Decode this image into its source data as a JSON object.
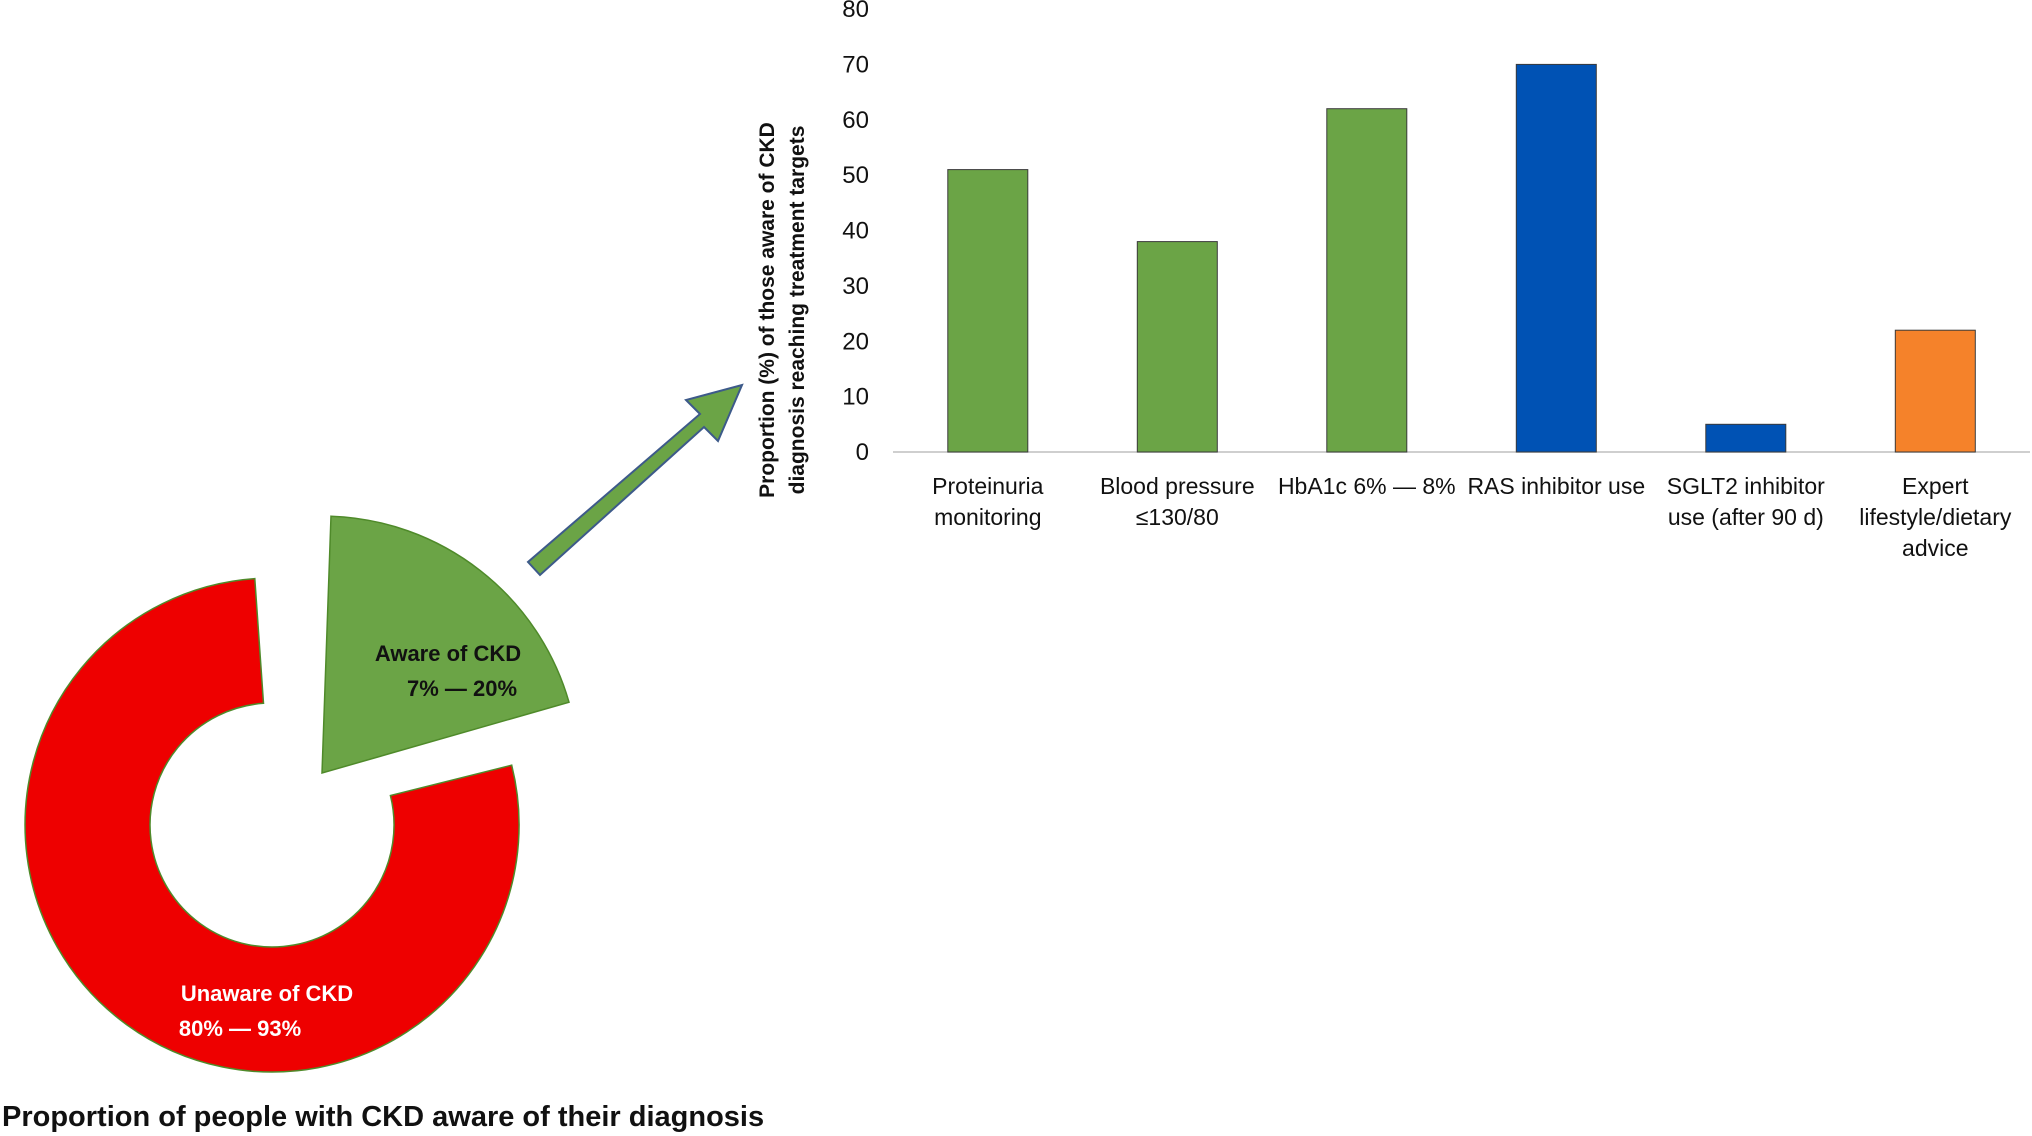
{
  "footer": {
    "title": "Proportion of people with CKD aware of their diagnosis"
  },
  "donut": {
    "unaware_label": "Unaware of CKD",
    "unaware_range": "80% — 93%",
    "aware_label": "Aware of CKD",
    "aware_range": "7% — 20%",
    "unaware_color": "#ee0000",
    "aware_color": "#6ba446",
    "aware_share_percent": 20
  },
  "arrow": {
    "color": "#6ba446"
  },
  "chart_data": [
    {
      "type": "pie",
      "title": "Proportion of people with CKD aware of their diagnosis",
      "slices": [
        {
          "label": "Unaware of CKD",
          "range": "80% — 93%",
          "color": "#ee0000"
        },
        {
          "label": "Aware of CKD",
          "range": "7% — 20%",
          "color": "#6ba446"
        }
      ]
    },
    {
      "type": "bar",
      "ylabel_lines": [
        "Proportion (%) of those aware of CKD",
        "diagnosis reaching treatment targets"
      ],
      "ylim": [
        0,
        80
      ],
      "yticks": [
        0,
        10,
        20,
        30,
        40,
        50,
        60,
        70,
        80
      ],
      "grid": false,
      "categories": [
        [
          "Proteinuria",
          "monitoring"
        ],
        [
          "Blood pressure",
          "≤130/80"
        ],
        [
          "HbA1c 6% — 8%"
        ],
        [
          "RAS inhibitor use"
        ],
        [
          "SGLT2 inhibitor",
          "use (after 90 d)"
        ],
        [
          "Expert",
          "lifestyle/dietary",
          "advice"
        ]
      ],
      "values": [
        51,
        38,
        62,
        70,
        5,
        22
      ],
      "colors": [
        "#6ba446",
        "#6ba446",
        "#6ba446",
        "#0052b4",
        "#0052b4",
        "#f5822a"
      ]
    }
  ]
}
